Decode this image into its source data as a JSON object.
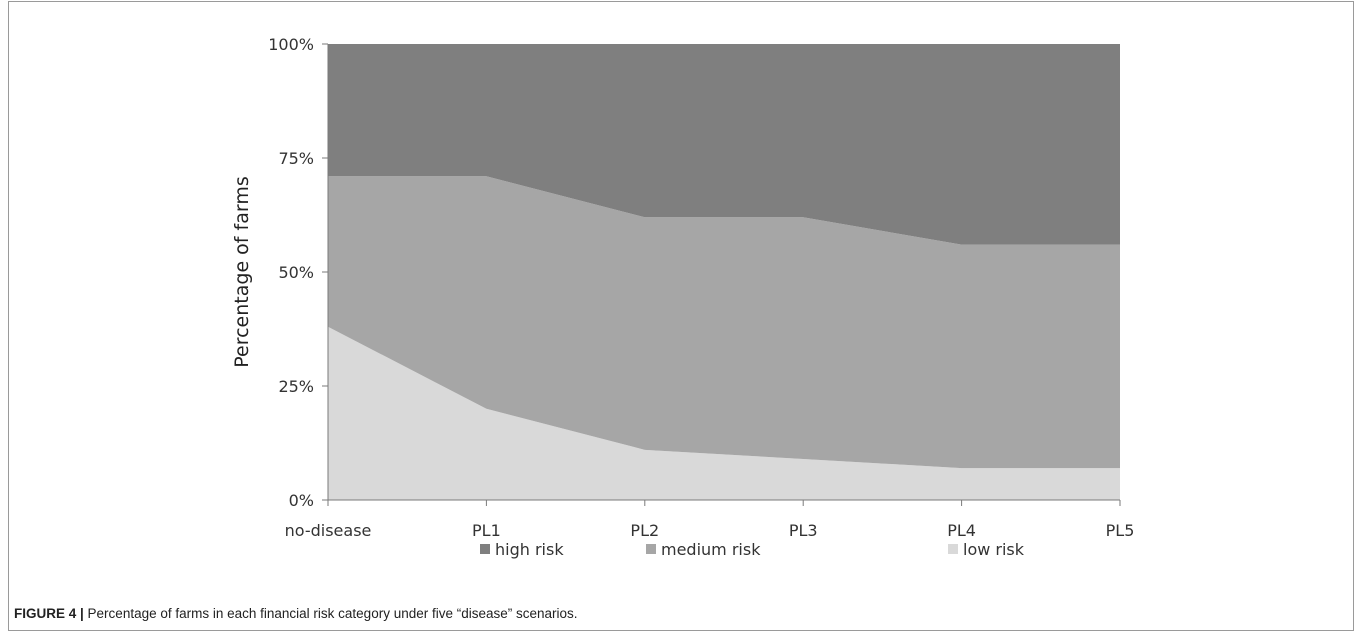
{
  "chart_data": {
    "type": "area",
    "stacked": true,
    "percent": true,
    "categories": [
      "no-disease",
      "PL1",
      "PL2",
      "PL3",
      "PL4",
      "PL5"
    ],
    "series": [
      {
        "name": "low risk",
        "color": "#d9d9d9",
        "values": [
          38,
          20,
          11,
          9,
          7,
          7
        ]
      },
      {
        "name": "medium risk",
        "color": "#a6a6a6",
        "values": [
          33,
          51,
          51,
          53,
          49,
          49
        ]
      },
      {
        "name": "high risk",
        "color": "#7f7f7f",
        "values": [
          29,
          29,
          38,
          38,
          44,
          44
        ]
      }
    ],
    "legend_order": [
      "high risk",
      "medium risk",
      "low risk"
    ],
    "legend_position": "bottom",
    "ylabel": "Percentage of farms",
    "xlabel": "",
    "ylim": [
      0,
      100
    ],
    "yticks": [
      "0%",
      "25%",
      "50%",
      "75%",
      "100%"
    ],
    "grid": false
  },
  "caption": {
    "label": "FIGURE 4 |",
    "text": " Percentage of farms in each financial risk category under five “disease” scenarios."
  }
}
